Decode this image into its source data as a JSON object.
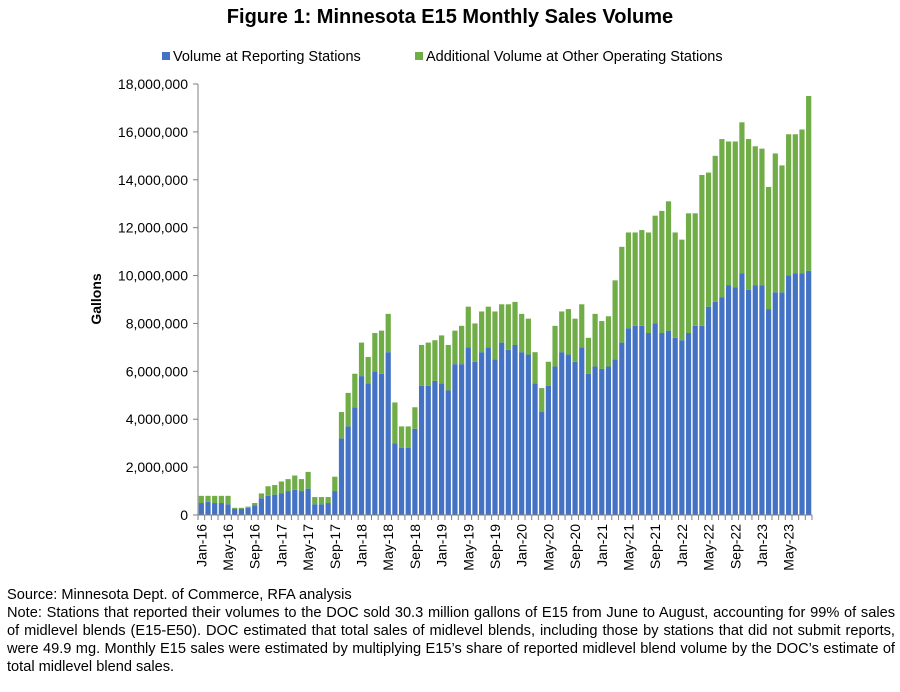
{
  "chart_data": {
    "type": "bar",
    "stacked": true,
    "title": "Figure 1: Minnesota E15 Monthly Sales Volume",
    "ylabel": "Gallons",
    "xlabel": "",
    "ylim": [
      0,
      18000000
    ],
    "y_ticks": [
      0,
      2000000,
      4000000,
      6000000,
      8000000,
      10000000,
      12000000,
      14000000,
      16000000,
      18000000
    ],
    "y_tick_labels": [
      "0",
      "2,000,000",
      "4,000,000",
      "6,000,000",
      "8,000,000",
      "10,000,000",
      "12,000,000",
      "14,000,000",
      "16,000,000",
      "18,000,000"
    ],
    "grid": false,
    "legend_position": "top",
    "categories": [
      "Jan-16",
      "Feb-16",
      "Mar-16",
      "Apr-16",
      "May-16",
      "Jun-16",
      "Jul-16",
      "Aug-16",
      "Sep-16",
      "Oct-16",
      "Nov-16",
      "Dec-16",
      "Jan-17",
      "Feb-17",
      "Mar-17",
      "Apr-17",
      "May-17",
      "Jun-17",
      "Jul-17",
      "Aug-17",
      "Sep-17",
      "Oct-17",
      "Nov-17",
      "Dec-17",
      "Jan-18",
      "Feb-18",
      "Mar-18",
      "Apr-18",
      "May-18",
      "Jun-18",
      "Jul-18",
      "Aug-18",
      "Sep-18",
      "Oct-18",
      "Nov-18",
      "Dec-18",
      "Jan-19",
      "Feb-19",
      "Mar-19",
      "Apr-19",
      "May-19",
      "Jun-19",
      "Jul-19",
      "Aug-19",
      "Sep-19",
      "Oct-19",
      "Nov-19",
      "Dec-19",
      "Jan-20",
      "Feb-20",
      "Mar-20",
      "Apr-20",
      "May-20",
      "Jun-20",
      "Jul-20",
      "Aug-20",
      "Sep-20",
      "Oct-20",
      "Nov-20",
      "Dec-20",
      "Jan-21",
      "Feb-21",
      "Mar-21",
      "Apr-21",
      "May-21",
      "Jun-21",
      "Jul-21",
      "Aug-21",
      "Sep-21",
      "Oct-21",
      "Nov-21",
      "Dec-21",
      "Jan-22",
      "Feb-22",
      "Mar-22",
      "Apr-22",
      "May-22",
      "Jun-22",
      "Jul-22",
      "Aug-22",
      "Sep-22",
      "Oct-22",
      "Nov-22",
      "Dec-22",
      "Jan-23",
      "Feb-23",
      "Mar-23",
      "Apr-23",
      "May-23",
      "Jun-23",
      "Jul-23",
      "Aug-23"
    ],
    "x_tick_labels": [
      "Jan-16",
      "May-16",
      "Sep-16",
      "Jan-17",
      "May-17",
      "Sep-17",
      "Jan-18",
      "May-18",
      "Sep-18",
      "Jan-19",
      "May-19",
      "Sep-19",
      "Jan-20",
      "May-20",
      "Sep-20",
      "Jan-21",
      "May-21",
      "Sep-21",
      "Jan-22",
      "May-22",
      "Sep-22",
      "Jan-23",
      "May-23"
    ],
    "series": [
      {
        "name": "Volume at Reporting Stations",
        "color": "#4472c4",
        "values": [
          500000,
          550000,
          500000,
          500000,
          450000,
          250000,
          250000,
          300000,
          400000,
          700000,
          800000,
          850000,
          900000,
          1000000,
          1050000,
          1000000,
          1100000,
          450000,
          450000,
          500000,
          1000000,
          3200000,
          3700000,
          4500000,
          5800000,
          5500000,
          6000000,
          5900000,
          6800000,
          3000000,
          2800000,
          2800000,
          3600000,
          5400000,
          5400000,
          5600000,
          5500000,
          5200000,
          6300000,
          6300000,
          7000000,
          6400000,
          6800000,
          7000000,
          6500000,
          7200000,
          6900000,
          7100000,
          6800000,
          6700000,
          5500000,
          4300000,
          5400000,
          6200000,
          6800000,
          6700000,
          6400000,
          7000000,
          5900000,
          6200000,
          6100000,
          6200000,
          6500000,
          7200000,
          7800000,
          7900000,
          7900000,
          7600000,
          8000000,
          7600000,
          7700000,
          7400000,
          7300000,
          7600000,
          7900000,
          7900000,
          8700000,
          8900000,
          9100000,
          9600000,
          9500000,
          10100000,
          9400000,
          9600000,
          9600000,
          8600000,
          9300000,
          9300000,
          10000000,
          10100000,
          10100000,
          10200000
        ]
      },
      {
        "name": "Additional Volume at Other Operating Stations",
        "color": "#70ad47",
        "values": [
          300000,
          250000,
          300000,
          300000,
          350000,
          50000,
          50000,
          50000,
          100000,
          200000,
          400000,
          400000,
          500000,
          500000,
          600000,
          500000,
          700000,
          300000,
          300000,
          250000,
          600000,
          1100000,
          1400000,
          1400000,
          1400000,
          1100000,
          1600000,
          1800000,
          1600000,
          1700000,
          900000,
          900000,
          900000,
          1700000,
          1800000,
          1700000,
          2000000,
          1900000,
          1400000,
          1600000,
          1700000,
          1600000,
          1700000,
          1700000,
          2000000,
          1600000,
          1900000,
          1800000,
          1600000,
          1500000,
          1300000,
          1000000,
          1000000,
          1700000,
          1700000,
          1900000,
          1800000,
          1800000,
          1500000,
          2200000,
          2000000,
          2100000,
          3300000,
          4000000,
          4000000,
          3900000,
          4000000,
          4200000,
          4500000,
          5100000,
          5400000,
          4400000,
          4200000,
          5000000,
          4700000,
          6300000,
          5600000,
          6100000,
          6600000,
          6000000,
          6100000,
          6300000,
          6300000,
          5800000,
          5700000,
          5100000,
          5800000,
          5300000,
          5900000,
          5800000,
          6000000,
          7300000
        ]
      }
    ]
  },
  "notes": {
    "source": "Source: Minnesota Dept. of Commerce, RFA analysis",
    "note": "Note: Stations that reported their volumes to the DOC sold 30.3 million gallons of E15 from June to August, accounting for 99% of sales of midlevel blends (E15-E50). DOC estimated that total sales of midlevel blends, including those by stations that did not submit reports, were 49.9 mg. Monthly E15 sales were estimated by multiplying E15’s share of reported midlevel blend volume by the DOC’s estimate of total midlevel blend sales."
  }
}
